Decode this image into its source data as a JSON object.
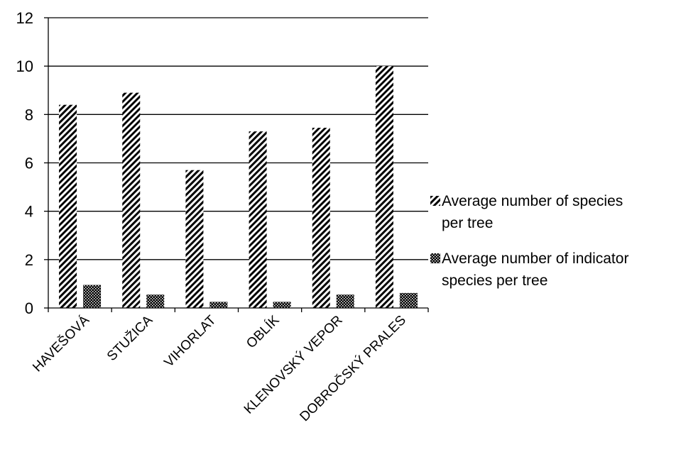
{
  "chart_data": {
    "type": "bar",
    "title": "",
    "xlabel": "",
    "ylabel": "",
    "ylim": [
      0,
      12
    ],
    "yticks": [
      "0",
      "2",
      "4",
      "6",
      "8",
      "10",
      "12"
    ],
    "grid": true,
    "legend_position": "right",
    "categories": [
      "HAVEŠOVÁ",
      "STUŽICA",
      "VIHORLAT",
      "OBLÍK",
      "KLENOVSKÝ VEPOR",
      "DOBROČSKÝ PRALES"
    ],
    "series": [
      {
        "name": "Average number of species per tree",
        "values": [
          8.4,
          8.9,
          5.7,
          7.3,
          7.45,
          10.0
        ],
        "pattern": "diagonal-hatch",
        "color": "#000000"
      },
      {
        "name": "Average number of indicator species per tree",
        "values": [
          0.95,
          0.55,
          0.25,
          0.25,
          0.55,
          0.62
        ],
        "pattern": "dense-checker",
        "color": "#000000"
      }
    ]
  },
  "legend": {
    "items": [
      {
        "line1": "Average number of species",
        "line2": "per tree"
      },
      {
        "line1": "Average number of indicator",
        "line2": "species per tree"
      }
    ]
  }
}
